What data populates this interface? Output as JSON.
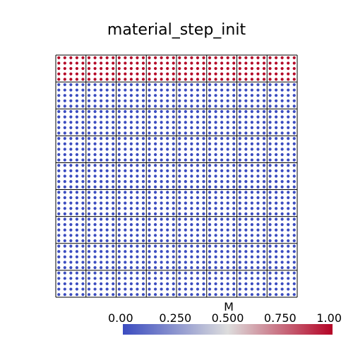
{
  "chart_data": {
    "type": "heatmap",
    "title": "material_step_init",
    "field_name": "M",
    "grid": {
      "columns": 8,
      "rows": 9,
      "points_per_cell": 5
    },
    "cell_values": [
      [
        1,
        1,
        1,
        1,
        1,
        1,
        1,
        1
      ],
      [
        0,
        0,
        0,
        0,
        0,
        0,
        0,
        0
      ],
      [
        0,
        0,
        0,
        0,
        0,
        0,
        0,
        0
      ],
      [
        0,
        0,
        0,
        0,
        0,
        0,
        0,
        0
      ],
      [
        0,
        0,
        0,
        0,
        0,
        0,
        0,
        0
      ],
      [
        0,
        0,
        0,
        0,
        0,
        0,
        0,
        0
      ],
      [
        0,
        0,
        0,
        0,
        0,
        0,
        0,
        0
      ],
      [
        0,
        0,
        0,
        0,
        0,
        0,
        0,
        0
      ],
      [
        0,
        0,
        0,
        0,
        0,
        0,
        0,
        0
      ]
    ],
    "color_range": [
      0,
      1
    ],
    "colorbar": {
      "label": "M",
      "ticks": [
        "0.00",
        "0.250",
        "0.500",
        "0.750",
        "1.00"
      ],
      "tick_values": [
        0,
        0.25,
        0.5,
        0.75,
        1
      ],
      "placement": "bottom-right"
    },
    "colors": {
      "low": "#3b4cc0",
      "mid": "#dddddd",
      "high": "#b40426",
      "grid_line": "#000000",
      "background": "#ffffff"
    }
  }
}
